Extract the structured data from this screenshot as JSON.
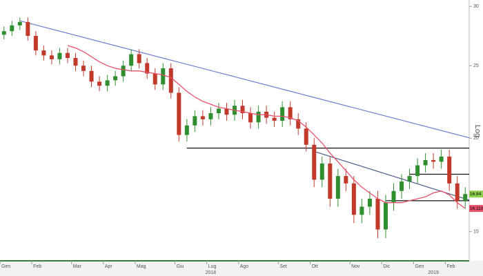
{
  "chart_data": {
    "type": "candlestick",
    "categories": [
      "Gen",
      null,
      null,
      null,
      "Feb",
      null,
      null,
      null,
      null,
      "Mar",
      null,
      null,
      null,
      "Apr",
      null,
      null,
      null,
      "Mag",
      null,
      null,
      null,
      null,
      "Giu",
      null,
      null,
      null,
      "Lug",
      null,
      null,
      null,
      "Ago",
      null,
      null,
      null,
      null,
      "Set",
      null,
      null,
      null,
      "Ott",
      null,
      null,
      null,
      null,
      "Nov",
      null,
      null,
      null,
      "Dic",
      null,
      null,
      null,
      "Gen",
      null,
      null,
      null,
      "Feb",
      null,
      null
    ],
    "years": [
      {
        "label": "2018",
        "at": 26
      },
      {
        "label": "2019",
        "at": 54
      }
    ],
    "open": [
      27.5,
      27.8,
      28.3,
      28.6,
      27.4,
      26.2,
      25.8,
      25.5,
      26.0,
      25.6,
      25.0,
      24.6,
      23.8,
      23.5,
      23.9,
      24.2,
      25.0,
      25.9,
      25.2,
      24.4,
      23.6,
      24.8,
      23.0,
      20.2,
      20.8,
      21.4,
      21.2,
      21.6,
      21.9,
      21.5,
      22.1,
      21.6,
      21.0,
      21.7,
      21.3,
      21.1,
      22.0,
      21.2,
      20.6,
      19.6,
      17.6,
      18.5,
      16.6,
      17.8,
      17.4,
      15.8,
      16.2,
      16.6,
      15.1,
      16.4,
      17.0,
      17.5,
      17.8,
      18.4,
      18.7,
      18.6,
      18.9,
      17.4,
      16.5
    ],
    "high": [
      28.2,
      28.7,
      29.0,
      29.0,
      27.8,
      26.6,
      26.2,
      26.4,
      26.4,
      26.0,
      25.4,
      25.0,
      24.2,
      24.3,
      24.6,
      25.4,
      26.3,
      26.3,
      25.6,
      24.8,
      25.2,
      25.2,
      23.4,
      21.2,
      21.8,
      21.8,
      22.0,
      22.3,
      22.3,
      22.5,
      22.5,
      22.0,
      22.1,
      22.1,
      21.7,
      22.4,
      22.4,
      21.6,
      21.0,
      20.0,
      18.9,
      18.9,
      18.2,
      18.2,
      17.8,
      16.6,
      17.0,
      17.0,
      16.8,
      17.4,
      17.9,
      18.2,
      18.8,
      19.1,
      19.1,
      19.3,
      19.3,
      17.8,
      17.2
    ],
    "low": [
      27.1,
      27.4,
      27.9,
      27.0,
      25.8,
      25.4,
      25.1,
      25.1,
      25.2,
      24.6,
      24.2,
      23.4,
      23.1,
      23.1,
      23.5,
      23.8,
      24.6,
      24.8,
      24.0,
      23.2,
      23.2,
      22.6,
      19.8,
      19.8,
      20.4,
      20.8,
      20.8,
      21.2,
      21.1,
      21.1,
      21.2,
      20.6,
      20.6,
      20.9,
      20.7,
      20.7,
      20.8,
      20.2,
      19.2,
      17.2,
      17.2,
      16.2,
      16.2,
      17.0,
      15.4,
      15.4,
      15.8,
      14.7,
      14.7,
      16.0,
      16.6,
      17.1,
      17.4,
      18.0,
      18.2,
      18.2,
      17.0,
      16.1,
      16.1
    ],
    "close": [
      27.8,
      28.3,
      28.6,
      27.4,
      26.2,
      25.8,
      25.5,
      26.0,
      25.6,
      25.0,
      24.6,
      23.8,
      23.5,
      23.9,
      24.2,
      25.0,
      25.9,
      25.2,
      24.4,
      23.6,
      24.8,
      23.0,
      20.2,
      20.8,
      21.4,
      21.2,
      21.6,
      21.9,
      21.5,
      22.1,
      21.6,
      21.0,
      21.7,
      21.3,
      21.1,
      22.0,
      21.2,
      20.6,
      19.6,
      17.6,
      18.5,
      16.6,
      17.8,
      17.4,
      15.8,
      16.2,
      16.6,
      15.1,
      16.4,
      17.0,
      17.5,
      17.8,
      18.4,
      18.7,
      18.6,
      18.9,
      17.4,
      16.5,
      16.84
    ],
    "up_color": "#2f8f2f",
    "down_color": "#c0392b",
    "moving_average": {
      "color": "#e8506a",
      "values": [
        null,
        null,
        null,
        null,
        null,
        null,
        null,
        null,
        26.6,
        26.4,
        26.1,
        25.7,
        25.3,
        25.0,
        24.8,
        24.7,
        24.6,
        24.6,
        24.5,
        24.4,
        24.3,
        24.1,
        23.6,
        23.1,
        22.7,
        22.4,
        22.2,
        22.0,
        21.9,
        21.8,
        21.7,
        21.6,
        21.5,
        21.5,
        21.4,
        21.4,
        21.3,
        21.1,
        20.7,
        20.2,
        19.7,
        19.1,
        18.6,
        18.1,
        17.6,
        17.2,
        16.9,
        16.6,
        16.4,
        16.4,
        16.4,
        16.5,
        16.6,
        16.7,
        16.9,
        17.0,
        16.8,
        16.4,
        16.11
      ]
    },
    "lines": [
      {
        "start": 2,
        "end": 58,
        "from": 28.7,
        "to": 20.1,
        "color": "#6a7bd0"
      },
      {
        "start": 39,
        "end": 58,
        "from": 19.2,
        "to": 16.6,
        "color": "#4a5a8a"
      },
      {
        "start": 23,
        "end": 58,
        "from": 19.4,
        "to": 19.4,
        "color": "#111111"
      },
      {
        "start": 51,
        "end": 58,
        "from": 17.9,
        "to": 17.9,
        "color": "#111111"
      },
      {
        "start": 48,
        "end": 58,
        "from": 16.5,
        "to": 16.5,
        "color": "#111111"
      }
    ],
    "last_labels": [
      {
        "value": 16.11,
        "label": "16.1100",
        "color": "#e8506a"
      },
      {
        "value": 16.84,
        "label": "16.84",
        "color": "#8fd14f"
      }
    ],
    "ylim": [
      13.8,
      30.6
    ],
    "yticks": [
      15,
      20,
      25,
      30
    ],
    "log_scale": true,
    "ylabel": "Log"
  }
}
